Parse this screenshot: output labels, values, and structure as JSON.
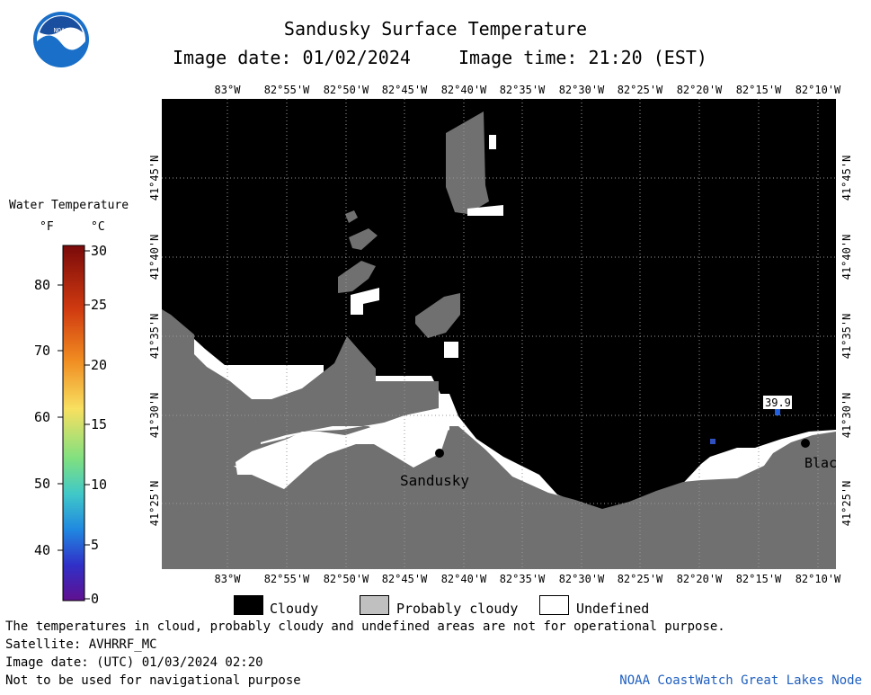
{
  "header": {
    "title": "Sandusky Surface Temperature",
    "image_date_label": "Image date: 01/02/2024",
    "image_time_label": "Image time: 21:20 (EST)"
  },
  "logo": {
    "text": "NOAA"
  },
  "map": {
    "lon_labels": [
      "83°W",
      "82°55'W",
      "82°50'W",
      "82°45'W",
      "82°40'W",
      "82°35'W",
      "82°30'W",
      "82°25'W",
      "82°20'W",
      "82°15'W",
      "82°10'W"
    ],
    "lat_labels": [
      "41°45'N",
      "41°40'N",
      "41°35'N",
      "41°30'N",
      "41°25'N"
    ],
    "places": [
      {
        "name": "Sandusky"
      },
      {
        "name": "Blac"
      }
    ],
    "readout": {
      "value": "39.9"
    }
  },
  "colorbar": {
    "title": "Water Temperature",
    "unit_f": "°F",
    "unit_c": "°C",
    "f_ticks": [
      "80",
      "70",
      "60",
      "50",
      "40"
    ],
    "c_ticks": [
      "30",
      "25",
      "20",
      "15",
      "10",
      "5",
      "0"
    ],
    "colors": [
      "#7a0a0a",
      "#d03a10",
      "#f08a20",
      "#f8e060",
      "#80e080",
      "#40c8c8",
      "#2088e0",
      "#3030c8",
      "#601090"
    ]
  },
  "legend": {
    "items": [
      {
        "label": "Cloudy",
        "color": "#000000"
      },
      {
        "label": "Probably cloudy",
        "color": "#c0c0c0"
      },
      {
        "label": "Undefined",
        "color": "#ffffff"
      }
    ]
  },
  "footer": {
    "disclaimer": "The temperatures in cloud, probably cloudy and undefined areas are not for operational purpose.",
    "satellite": "Satellite: AVHRRF_MC",
    "utc_date": "Image date: (UTC) 01/03/2024  02:20",
    "nav_warning": "Not to be used for navigational purpose",
    "credit": "NOAA CoastWatch Great Lakes Node"
  }
}
